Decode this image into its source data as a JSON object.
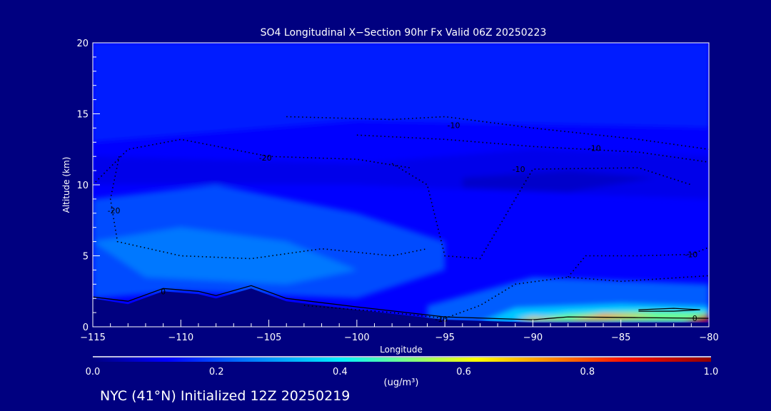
{
  "chart_data": {
    "type": "heatmap",
    "title": "SO4 Longitudinal X−Section 90hr  Fx Valid 06Z 20250223",
    "xlabel": "Longitude",
    "ylabel": "Altitude (km)",
    "xlim": [
      -115,
      -80
    ],
    "ylim": [
      0,
      20
    ],
    "xticks": [
      -115,
      -110,
      -105,
      -100,
      -95,
      -90,
      -85,
      -80
    ],
    "xtick_labels": [
      "−115",
      "−110",
      "−105",
      "−100",
      "−95",
      "−90",
      "−85",
      "−80"
    ],
    "yticks": [
      0,
      5,
      10,
      15,
      20
    ],
    "ytick_labels": [
      "0",
      "5",
      "10",
      "15",
      "20"
    ],
    "colorbar": {
      "range": [
        0.0,
        1.0
      ],
      "ticks": [
        0.0,
        0.2,
        0.4,
        0.6,
        0.8,
        1.0
      ],
      "tick_labels": [
        "0.0",
        "0.2",
        "0.4",
        "0.6",
        "0.8",
        "1.0"
      ],
      "units": "(ug/m³)"
    },
    "regions": [
      {
        "value": 0.15,
        "points": [
          [
            -115,
            20
          ],
          [
            -80,
            20
          ],
          [
            -80,
            14
          ],
          [
            -100,
            14.5
          ],
          [
            -115,
            13
          ]
        ]
      },
      {
        "value": 0.1,
        "points": [
          [
            -115,
            12
          ],
          [
            -100,
            11.5
          ],
          [
            -90,
            12.5
          ],
          [
            -80,
            12
          ],
          [
            -80,
            9
          ],
          [
            -90,
            9.5
          ],
          [
            -100,
            10
          ],
          [
            -115,
            10
          ]
        ]
      },
      {
        "value": 0.2,
        "points": [
          [
            -115,
            9
          ],
          [
            -108,
            10
          ],
          [
            -100,
            8
          ],
          [
            -95,
            6
          ],
          [
            -95,
            4
          ],
          [
            -100,
            2
          ],
          [
            -110,
            2.5
          ],
          [
            -115,
            2
          ]
        ]
      },
      {
        "value": 0.25,
        "points": [
          [
            -115,
            6
          ],
          [
            -110,
            7
          ],
          [
            -104,
            6
          ],
          [
            -100,
            4
          ],
          [
            -104,
            3
          ],
          [
            -112,
            3.5
          ]
        ]
      },
      {
        "value": 0.07,
        "points": [
          [
            -94,
            10.5
          ],
          [
            -88,
            11
          ],
          [
            -83,
            10.5
          ],
          [
            -88,
            9.5
          ],
          [
            -94,
            9.8
          ]
        ]
      },
      {
        "value": 0.22,
        "points": [
          [
            -96,
            1.5
          ],
          [
            -90,
            3.5
          ],
          [
            -84,
            3.2
          ],
          [
            -80,
            3
          ],
          [
            -80,
            0.3
          ],
          [
            -96,
            0.3
          ]
        ]
      },
      {
        "value": 0.35,
        "points": [
          [
            -93,
            0.3
          ],
          [
            -91,
            1.3
          ],
          [
            -85,
            1.6
          ],
          [
            -80,
            1.4
          ],
          [
            -80,
            0.3
          ]
        ]
      },
      {
        "value": 0.5,
        "points": [
          [
            -91,
            0.4
          ],
          [
            -88,
            0.9
          ],
          [
            -84,
            1.1
          ],
          [
            -80,
            1.0
          ],
          [
            -80,
            0.3
          ],
          [
            -90,
            0.3
          ]
        ]
      },
      {
        "value": 0.75,
        "points": [
          [
            -88,
            0.5
          ],
          [
            -86,
            0.9
          ],
          [
            -83,
            0.8
          ],
          [
            -86,
            0.55
          ]
        ]
      },
      {
        "value": 0.7,
        "points": [
          [
            -91,
            0.5
          ],
          [
            -90,
            0.7
          ],
          [
            -88,
            0.55
          ]
        ]
      },
      {
        "value": 0.95,
        "points": [
          [
            -81.5,
            0.3
          ],
          [
            -80,
            0.9
          ],
          [
            -80,
            0.3
          ]
        ]
      }
    ],
    "terrain": [
      [
        -115,
        0
      ],
      [
        -115,
        2.0
      ],
      [
        -113,
        1.6
      ],
      [
        -111,
        2.5
      ],
      [
        -109,
        2.3
      ],
      [
        -108,
        2.0
      ],
      [
        -106,
        2.7
      ],
      [
        -104,
        1.8
      ],
      [
        -100,
        1.2
      ],
      [
        -95,
        0.5
      ],
      [
        -90,
        0.3
      ],
      [
        -80,
        0.3
      ],
      [
        -80,
        0
      ]
    ],
    "contours": [
      {
        "label": "0",
        "label_at": [
          -111,
          2.5
        ],
        "style": "solid",
        "points": [
          [
            -115,
            2.1
          ],
          [
            -113,
            1.8
          ],
          [
            -111,
            2.7
          ],
          [
            -109,
            2.5
          ],
          [
            -108,
            2.2
          ],
          [
            -106,
            2.9
          ],
          [
            -104,
            2.0
          ],
          [
            -100,
            1.4
          ],
          [
            -95,
            0.7
          ],
          [
            -90,
            0.5
          ],
          [
            -88,
            0.7
          ],
          [
            -84,
            0.65
          ],
          [
            -80,
            0.6
          ]
        ]
      },
      {
        "label": "0",
        "label_at": [
          -80.8,
          0.6
        ],
        "style": "solid",
        "points": [
          [
            -84,
            1.1
          ],
          [
            -82,
            1.1
          ],
          [
            -80.5,
            1.2
          ],
          [
            -82,
            1.3
          ],
          [
            -84,
            1.2
          ]
        ]
      },
      {
        "label": "-10",
        "label_at": [
          -95.2,
          0.55
        ],
        "style": "dotted",
        "points": [
          [
            -103,
            1.5
          ],
          [
            -98,
            1.0
          ],
          [
            -95,
            0.6
          ],
          [
            -93,
            1.5
          ],
          [
            -91,
            3.0
          ],
          [
            -88,
            3.5
          ],
          [
            -85,
            3.2
          ],
          [
            -80,
            3.6
          ]
        ]
      },
      {
        "label": "-10",
        "label_at": [
          -94.5,
          14.2
        ],
        "style": "dotted",
        "points": [
          [
            -104,
            14.8
          ],
          [
            -98,
            14.6
          ],
          [
            -95,
            14.8
          ],
          [
            -90,
            14
          ],
          [
            -84,
            13.2
          ],
          [
            -80,
            12.5
          ]
        ]
      },
      {
        "label": "-10",
        "label_at": [
          -86.5,
          12.6
        ],
        "style": "dotted",
        "points": [
          [
            -100,
            13.5
          ],
          [
            -95,
            13.2
          ],
          [
            -90,
            12.7
          ],
          [
            -84,
            12.3
          ],
          [
            -80,
            11.6
          ]
        ]
      },
      {
        "label": "-10",
        "label_at": [
          -90.8,
          11.1
        ],
        "style": "dotted",
        "points": [
          [
            -98,
            11.5
          ],
          [
            -96,
            10
          ],
          [
            -95,
            5
          ],
          [
            -93,
            4.8
          ],
          [
            -90,
            11.1
          ],
          [
            -84,
            11.2
          ],
          [
            -81,
            10
          ]
        ]
      },
      {
        "label": "-10",
        "label_at": [
          -81,
          5.1
        ],
        "style": "dotted",
        "points": [
          [
            -88,
            3.5
          ],
          [
            -87,
            5
          ],
          [
            -84,
            5
          ],
          [
            -81,
            5.1
          ],
          [
            -80,
            5.6
          ]
        ]
      },
      {
        "label": "-20",
        "label_at": [
          -105.2,
          11.9
        ],
        "style": "dotted",
        "points": [
          [
            -115,
            10
          ],
          [
            -113,
            12.5
          ],
          [
            -110,
            13.2
          ],
          [
            -105,
            12
          ],
          [
            -100,
            11.8
          ],
          [
            -97,
            11.2
          ]
        ]
      },
      {
        "label": "-20",
        "label_at": [
          -113.8,
          8.2
        ],
        "style": "dotted",
        "points": [
          [
            -113.5,
            12
          ],
          [
            -114,
            9
          ],
          [
            -113.6,
            6
          ],
          [
            -110,
            5
          ],
          [
            -106,
            4.8
          ],
          [
            -102,
            5.5
          ],
          [
            -98,
            5
          ],
          [
            -96,
            5.5
          ]
        ]
      }
    ]
  },
  "footer": {
    "caption": "NYC (41°N) Initialized 12Z 20250219"
  }
}
